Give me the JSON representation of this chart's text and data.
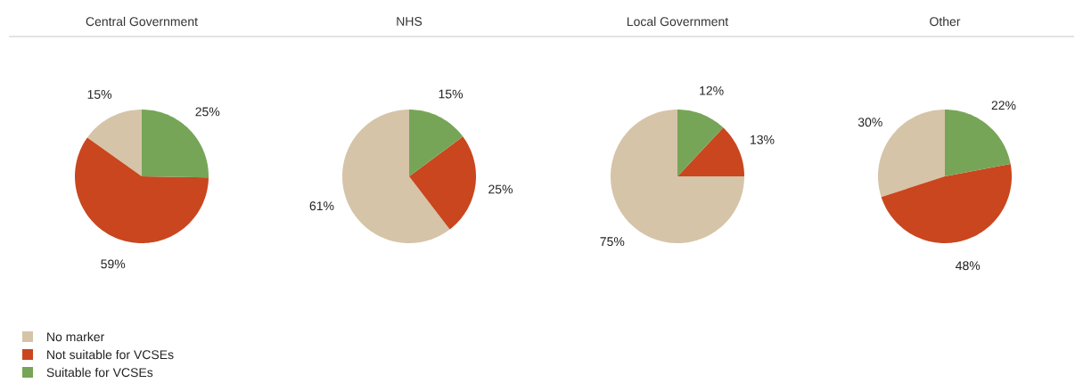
{
  "chart_data": [
    {
      "type": "pie",
      "title": "Central Government",
      "categories": [
        "No marker",
        "Not suitable for VCSEs",
        "Suitable for VCSEs"
      ],
      "values": [
        15,
        59,
        25
      ],
      "value_labels": [
        "15%",
        "59%",
        "25%"
      ],
      "colors": [
        "#d5c4a8",
        "#c9461f",
        "#76a557"
      ],
      "legend": "bottom left"
    },
    {
      "type": "pie",
      "title": "NHS",
      "categories": [
        null,
        null,
        null
      ],
      "values": [
        61,
        25,
        15
      ],
      "value_labels": [
        "61%",
        "25%",
        "15%"
      ],
      "colors": [
        "#d5c4a8",
        "#c9461f",
        "#76a557"
      ]
    },
    {
      "type": "pie",
      "title": "Local Government",
      "categories": [
        null,
        null,
        null
      ],
      "values": [
        75,
        13,
        12
      ],
      "value_labels": [
        "75%",
        "13%",
        "12%"
      ],
      "colors": [
        "#d5c4a8",
        "#c9461f",
        "#76a557"
      ]
    },
    {
      "type": "pie",
      "title": "Other",
      "categories": [
        null,
        null,
        null
      ],
      "values": [
        30,
        48,
        22
      ],
      "value_labels": [
        "30%",
        "48%",
        "22%"
      ],
      "colors": [
        "#d5c4a8",
        "#c9461f",
        "#76a557"
      ]
    }
  ]
}
